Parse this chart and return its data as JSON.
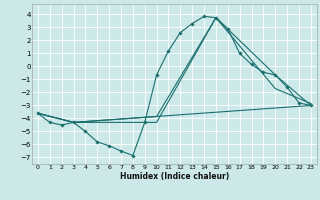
{
  "bg_color": "#cce8e8",
  "grid_color": "#aad4d4",
  "line_color": "#1a6e6e",
  "xlabel": "Humidex (Indice chaleur)",
  "xlim": [
    -0.5,
    23.5
  ],
  "ylim": [
    -7.5,
    4.8
  ],
  "yticks": [
    -7,
    -6,
    -5,
    -4,
    -3,
    -2,
    -1,
    0,
    1,
    2,
    3,
    4
  ],
  "xticks": [
    0,
    1,
    2,
    3,
    4,
    5,
    6,
    7,
    8,
    9,
    10,
    11,
    12,
    13,
    14,
    15,
    16,
    17,
    18,
    19,
    20,
    21,
    22,
    23
  ],
  "line1_x": [
    0,
    1,
    2,
    3,
    4,
    5,
    6,
    7,
    8,
    9,
    10,
    11,
    12,
    13,
    14,
    15,
    16,
    17,
    18,
    19,
    20,
    21,
    22,
    23
  ],
  "line1_y": [
    -3.6,
    -4.3,
    -4.5,
    -4.3,
    -5.0,
    -5.8,
    -6.1,
    -6.5,
    -6.85,
    -4.3,
    -0.65,
    1.2,
    2.6,
    3.3,
    3.85,
    3.75,
    2.9,
    1.0,
    0.15,
    -0.45,
    -0.65,
    -1.6,
    -2.8,
    -3.0
  ],
  "line2_x": [
    0,
    3,
    10,
    15,
    20,
    23
  ],
  "line2_y": [
    -3.6,
    -4.3,
    -3.85,
    3.75,
    -0.65,
    -3.0
  ],
  "line3_x": [
    0,
    3,
    10,
    15,
    20,
    23
  ],
  "line3_y": [
    -3.6,
    -4.3,
    -4.3,
    3.75,
    -1.7,
    -2.85
  ],
  "line4_x": [
    0,
    3,
    23
  ],
  "line4_y": [
    -3.6,
    -4.3,
    -3.0
  ]
}
